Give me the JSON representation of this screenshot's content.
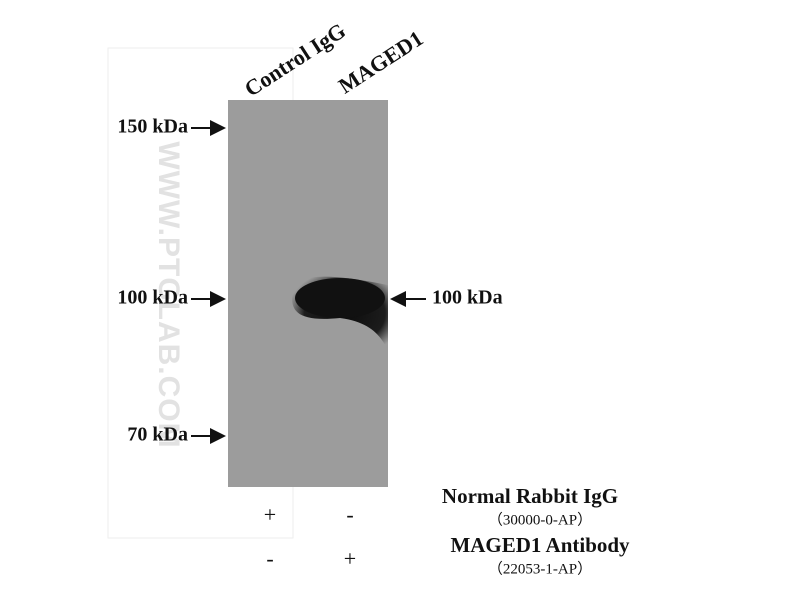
{
  "lanes": [
    "Control IgG",
    "MAGED1"
  ],
  "markers": [
    "150 kDa",
    "100 kDa",
    "70 kDa"
  ],
  "band_label": "100 kDa",
  "watermark": "WWW.PTGLAB.COM",
  "conditions": [
    {
      "name": "Normal Rabbit IgG",
      "catalog": "（30000-0-AP）",
      "signs": [
        "+",
        "-"
      ]
    },
    {
      "name": "MAGED1 Antibody",
      "catalog": "（22053-1-AP）",
      "signs": [
        "-",
        "+"
      ]
    }
  ]
}
